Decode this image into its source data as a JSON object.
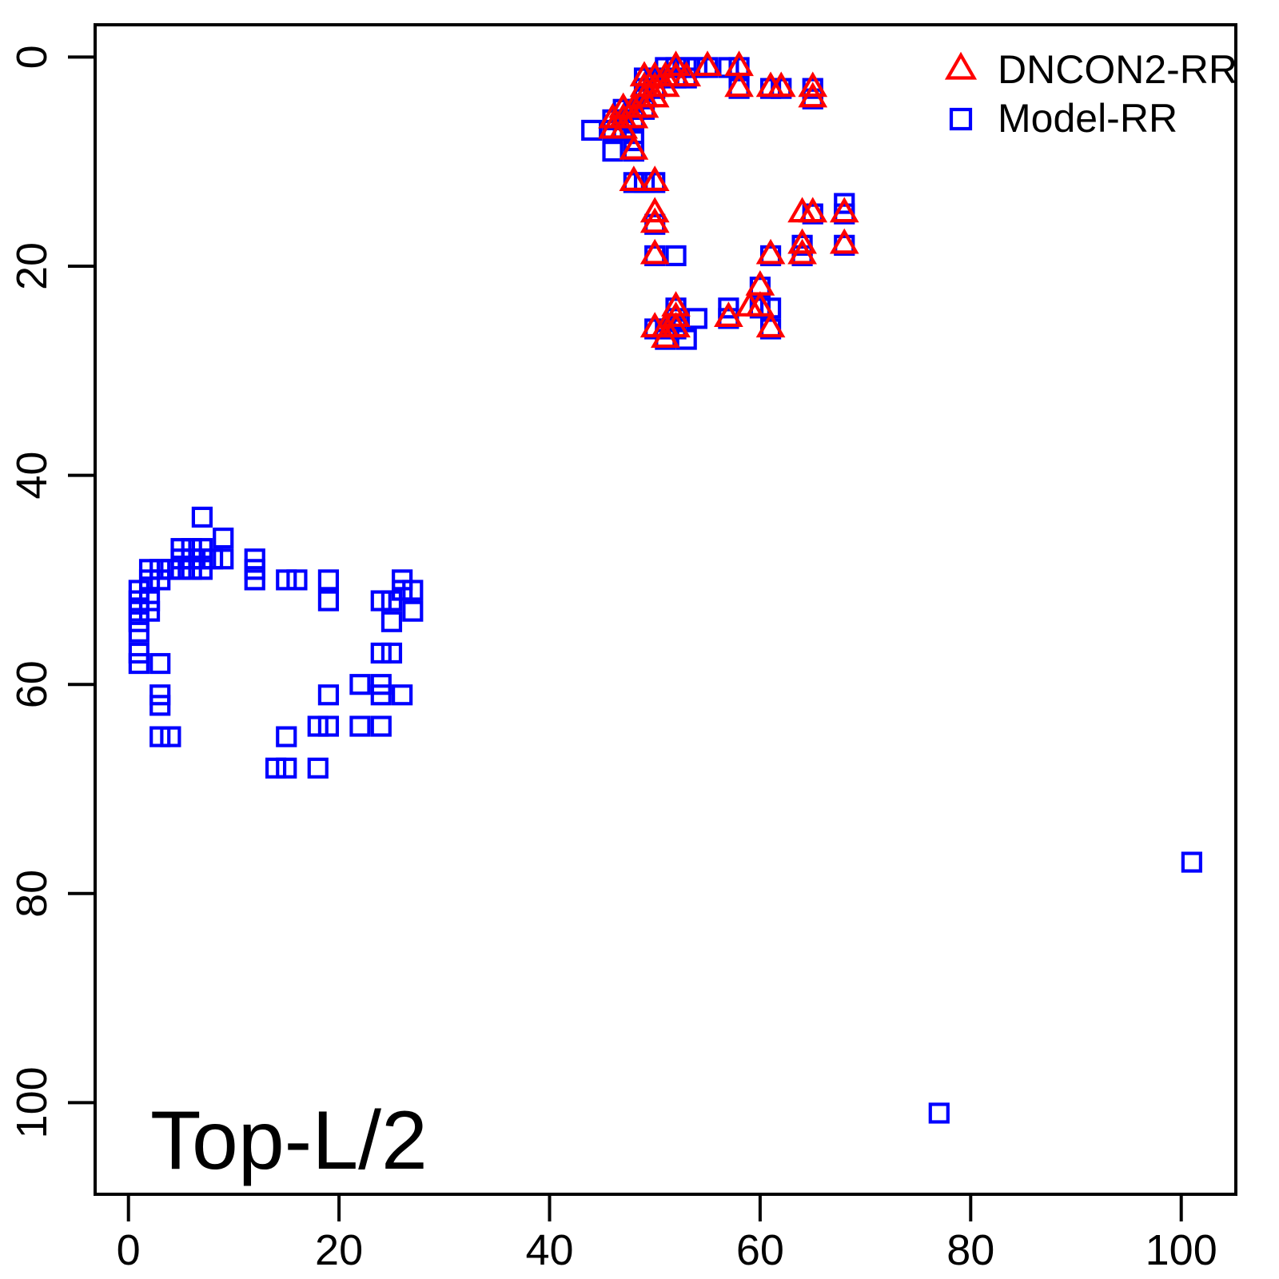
{
  "figure": {
    "corner_label": "Top-L/2",
    "background": "#ffffff",
    "frame_color": "#000000"
  },
  "axes": {
    "x_ticks": [
      0,
      20,
      40,
      60,
      80,
      100
    ],
    "y_ticks": [
      0,
      20,
      40,
      60,
      80,
      100
    ],
    "x_range": [
      -4,
      105
    ],
    "y_range": [
      -3.5,
      109
    ],
    "y_reversed": true,
    "grid": false
  },
  "legend": {
    "position": "top-right",
    "items": [
      {
        "label": "DNCON2-RR",
        "marker": "triangle-icon",
        "color": "#FF0000"
      },
      {
        "label": "Model-RR",
        "marker": "square-icon",
        "color": "#0000FF"
      }
    ]
  },
  "chart_data": {
    "type": "scatter",
    "title": "",
    "xlabel": "",
    "ylabel": "",
    "annotation": "Top-L/2",
    "xlim": [
      0,
      100
    ],
    "ylim_top_to_bottom": [
      0,
      100
    ],
    "legend_position": "top-right",
    "series": [
      {
        "name": "Model-RR",
        "marker": "square",
        "color": "#0000FF",
        "points": [
          [
            51,
            1
          ],
          [
            52,
            1
          ],
          [
            53,
            1
          ],
          [
            54,
            1
          ],
          [
            55,
            1
          ],
          [
            57,
            1
          ],
          [
            58,
            1
          ],
          [
            49,
            2
          ],
          [
            50,
            2
          ],
          [
            52,
            2
          ],
          [
            53,
            2
          ],
          [
            49,
            3
          ],
          [
            50,
            3
          ],
          [
            58,
            3
          ],
          [
            61,
            3
          ],
          [
            62,
            3
          ],
          [
            65,
            3
          ],
          [
            49,
            4
          ],
          [
            65,
            4
          ],
          [
            47,
            5
          ],
          [
            48,
            5
          ],
          [
            49,
            5
          ],
          [
            46,
            6
          ],
          [
            47,
            6
          ],
          [
            48,
            6
          ],
          [
            44,
            7
          ],
          [
            46,
            7
          ],
          [
            47,
            7
          ],
          [
            48,
            8
          ],
          [
            46,
            9
          ],
          [
            48,
            9
          ],
          [
            48,
            12
          ],
          [
            49,
            12
          ],
          [
            50,
            12
          ],
          [
            68,
            14
          ],
          [
            65,
            15
          ],
          [
            68,
            15
          ],
          [
            50,
            16
          ],
          [
            64,
            18
          ],
          [
            68,
            18
          ],
          [
            50,
            19
          ],
          [
            52,
            19
          ],
          [
            61,
            19
          ],
          [
            64,
            19
          ],
          [
            60,
            22
          ],
          [
            52,
            24
          ],
          [
            57,
            24
          ],
          [
            60,
            24
          ],
          [
            61,
            24
          ],
          [
            52,
            25
          ],
          [
            54,
            25
          ],
          [
            57,
            25
          ],
          [
            50,
            26
          ],
          [
            51,
            26
          ],
          [
            52,
            26
          ],
          [
            61,
            26
          ],
          [
            51,
            27
          ],
          [
            53,
            27
          ],
          [
            101,
            77
          ],
          [
            7,
            44
          ],
          [
            9,
            46
          ],
          [
            5,
            47
          ],
          [
            6,
            47
          ],
          [
            7,
            47
          ],
          [
            5,
            48
          ],
          [
            6,
            48
          ],
          [
            7,
            48
          ],
          [
            8,
            48
          ],
          [
            9,
            48
          ],
          [
            12,
            48
          ],
          [
            2,
            49
          ],
          [
            3,
            49
          ],
          [
            4,
            49
          ],
          [
            5,
            49
          ],
          [
            6,
            49
          ],
          [
            7,
            49
          ],
          [
            12,
            49
          ],
          [
            2,
            50
          ],
          [
            3,
            50
          ],
          [
            12,
            50
          ],
          [
            15,
            50
          ],
          [
            16,
            50
          ],
          [
            19,
            50
          ],
          [
            26,
            50
          ],
          [
            1,
            51
          ],
          [
            26,
            51
          ],
          [
            27,
            51
          ],
          [
            1,
            52
          ],
          [
            2,
            52
          ],
          [
            19,
            52
          ],
          [
            24,
            52
          ],
          [
            25,
            52
          ],
          [
            1,
            53
          ],
          [
            2,
            53
          ],
          [
            27,
            53
          ],
          [
            1,
            54
          ],
          [
            25,
            54
          ],
          [
            1,
            55
          ],
          [
            1,
            57
          ],
          [
            24,
            57
          ],
          [
            25,
            57
          ],
          [
            1,
            58
          ],
          [
            3,
            58
          ],
          [
            22,
            60
          ],
          [
            24,
            60
          ],
          [
            3,
            61
          ],
          [
            19,
            61
          ],
          [
            24,
            61
          ],
          [
            26,
            61
          ],
          [
            3,
            62
          ],
          [
            18,
            64
          ],
          [
            19,
            64
          ],
          [
            22,
            64
          ],
          [
            24,
            64
          ],
          [
            3,
            65
          ],
          [
            4,
            65
          ],
          [
            15,
            65
          ],
          [
            14,
            68
          ],
          [
            15,
            68
          ],
          [
            18,
            68
          ],
          [
            77,
            101
          ]
        ]
      },
      {
        "name": "DNCON2-RR",
        "marker": "triangle",
        "color": "#FF0000",
        "points": [
          [
            52,
            1
          ],
          [
            55,
            1
          ],
          [
            58,
            1
          ],
          [
            49,
            2
          ],
          [
            50,
            2
          ],
          [
            51,
            2
          ],
          [
            52,
            2
          ],
          [
            53,
            2
          ],
          [
            49,
            3
          ],
          [
            50,
            3
          ],
          [
            51,
            3
          ],
          [
            58,
            3
          ],
          [
            61,
            3
          ],
          [
            62,
            3
          ],
          [
            65,
            3
          ],
          [
            49,
            4
          ],
          [
            50,
            4
          ],
          [
            65,
            4
          ],
          [
            47,
            5
          ],
          [
            48,
            5
          ],
          [
            49,
            5
          ],
          [
            46,
            6
          ],
          [
            47,
            6
          ],
          [
            48,
            6
          ],
          [
            46,
            7
          ],
          [
            47,
            7
          ],
          [
            48,
            9
          ],
          [
            48,
            12
          ],
          [
            50,
            12
          ],
          [
            50,
            15
          ],
          [
            64,
            15
          ],
          [
            65,
            15
          ],
          [
            68,
            15
          ],
          [
            50,
            16
          ],
          [
            64,
            18
          ],
          [
            68,
            18
          ],
          [
            50,
            19
          ],
          [
            61,
            19
          ],
          [
            64,
            19
          ],
          [
            60,
            22
          ],
          [
            52,
            24
          ],
          [
            59,
            24
          ],
          [
            60,
            24
          ],
          [
            52,
            25
          ],
          [
            57,
            25
          ],
          [
            50,
            26
          ],
          [
            51,
            26
          ],
          [
            52,
            26
          ],
          [
            61,
            26
          ],
          [
            51,
            27
          ]
        ]
      }
    ]
  }
}
